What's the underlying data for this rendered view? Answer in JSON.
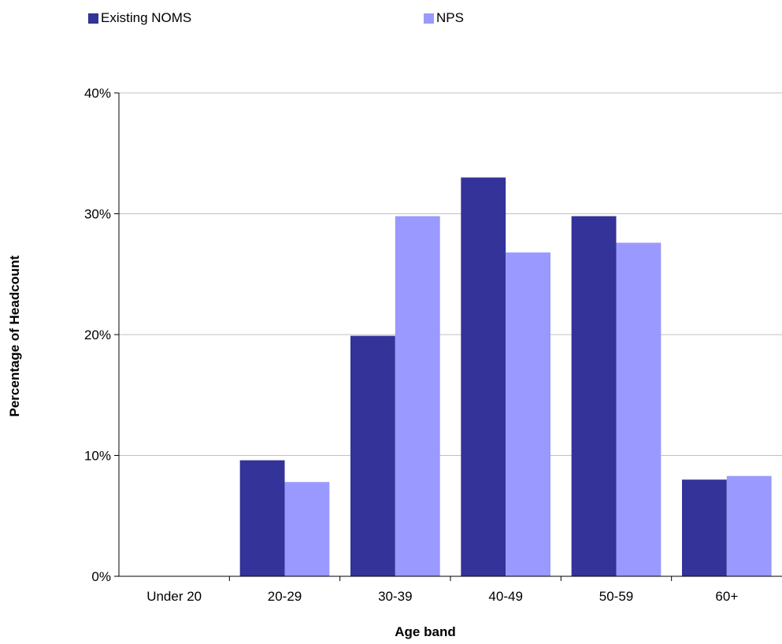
{
  "chart_data": {
    "type": "bar",
    "categories": [
      "Under 20",
      "20-29",
      "30-39",
      "40-49",
      "50-59",
      "60+"
    ],
    "series": [
      {
        "name": "Existing NOMS",
        "color": "#333399",
        "values": [
          0,
          9.6,
          19.9,
          33.0,
          29.8,
          8.0
        ]
      },
      {
        "name": "NPS",
        "color": "#9999ff",
        "values": [
          0,
          7.8,
          29.8,
          26.8,
          27.6,
          8.3
        ]
      }
    ],
    "xlabel": "Age band",
    "ylabel": "Percentage of Headcount",
    "ylim": [
      0,
      40
    ],
    "yticks": [
      "0%",
      "10%",
      "20%",
      "30%",
      "40%"
    ],
    "grid": true,
    "legend": "top"
  }
}
